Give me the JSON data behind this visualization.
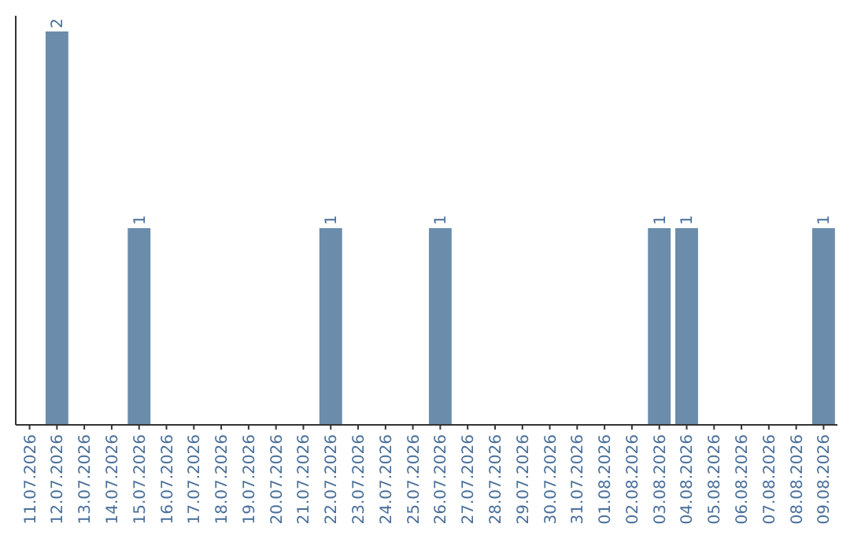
{
  "chart_data": {
    "type": "bar",
    "categories": [
      "11.07.2026",
      "12.07.2026",
      "13.07.2026",
      "14.07.2026",
      "15.07.2026",
      "16.07.2026",
      "17.07.2026",
      "18.07.2026",
      "19.07.2026",
      "20.07.2026",
      "21.07.2026",
      "22.07.2026",
      "23.07.2026",
      "24.07.2026",
      "25.07.2026",
      "26.07.2026",
      "27.07.2026",
      "28.07.2026",
      "29.07.2026",
      "30.07.2026",
      "31.07.2026",
      "01.08.2026",
      "02.08.2026",
      "03.08.2026",
      "04.08.2026",
      "05.08.2026",
      "06.08.2026",
      "07.08.2026",
      "08.08.2026",
      "09.08.2026"
    ],
    "values": [
      0,
      2,
      0,
      0,
      1,
      0,
      0,
      0,
      0,
      0,
      0,
      1,
      0,
      0,
      0,
      1,
      0,
      0,
      0,
      0,
      0,
      0,
      0,
      1,
      1,
      0,
      0,
      0,
      0,
      1
    ],
    "value_labels": [
      null,
      "2",
      null,
      null,
      "1",
      null,
      null,
      null,
      null,
      null,
      null,
      "1",
      null,
      null,
      null,
      "1",
      null,
      null,
      null,
      null,
      null,
      null,
      null,
      "1",
      "1",
      null,
      null,
      null,
      null,
      "1"
    ],
    "color": "#6b8cab"
  }
}
